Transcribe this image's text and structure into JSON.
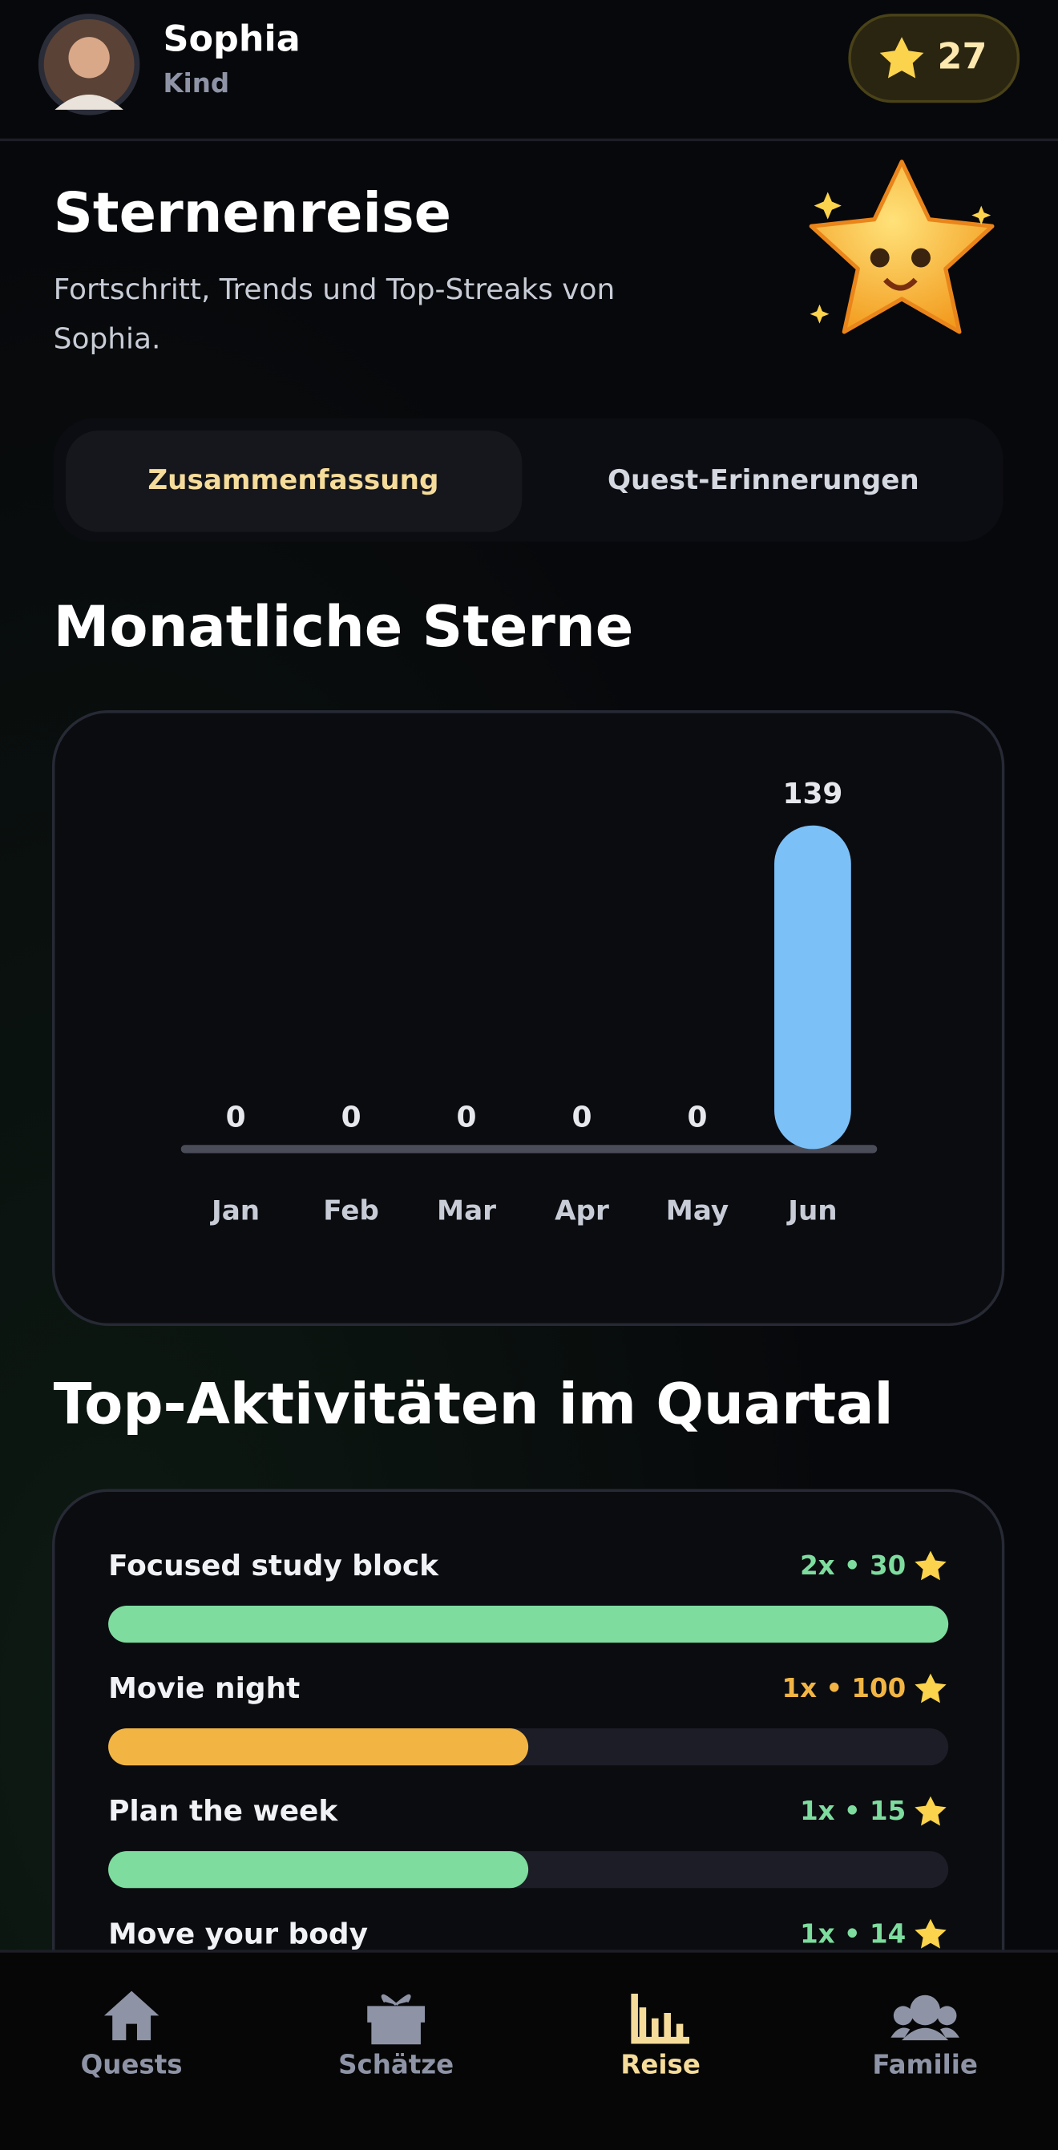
{
  "header": {
    "name": "Sophia",
    "role": "Kind",
    "stars": 27
  },
  "page": {
    "title": "Sternenreise",
    "subtitle": "Fortschritt, Trends und Top-Streaks von Sophia."
  },
  "tabs": [
    "Zusammenfassung",
    "Quest-Erinnerungen"
  ],
  "sections": {
    "monthly": "Monatliche Sterne",
    "activities": "Top-Aktivitäten im Quartal"
  },
  "chart_data": {
    "type": "bar",
    "categories": [
      "Jan",
      "Feb",
      "Mar",
      "Apr",
      "May",
      "Jun"
    ],
    "values": [
      0,
      0,
      0,
      0,
      0,
      139
    ],
    "color": "#7cc0f8"
  },
  "activities": [
    {
      "name": "Focused study block",
      "count": 2,
      "stats": "2x • 30",
      "color": "#7ddc9e"
    },
    {
      "name": "Movie night",
      "count": 1,
      "stats": "1x • 100",
      "color": "#f2b544"
    },
    {
      "name": "Plan the week",
      "count": 1,
      "stats": "1x • 15",
      "color": "#7ddc9e"
    },
    {
      "name": "Move your body",
      "count": 1,
      "stats": "1x • 14",
      "color": "#7ddc9e"
    }
  ],
  "nav": [
    "Quests",
    "Schätze",
    "Reise",
    "Familie"
  ]
}
